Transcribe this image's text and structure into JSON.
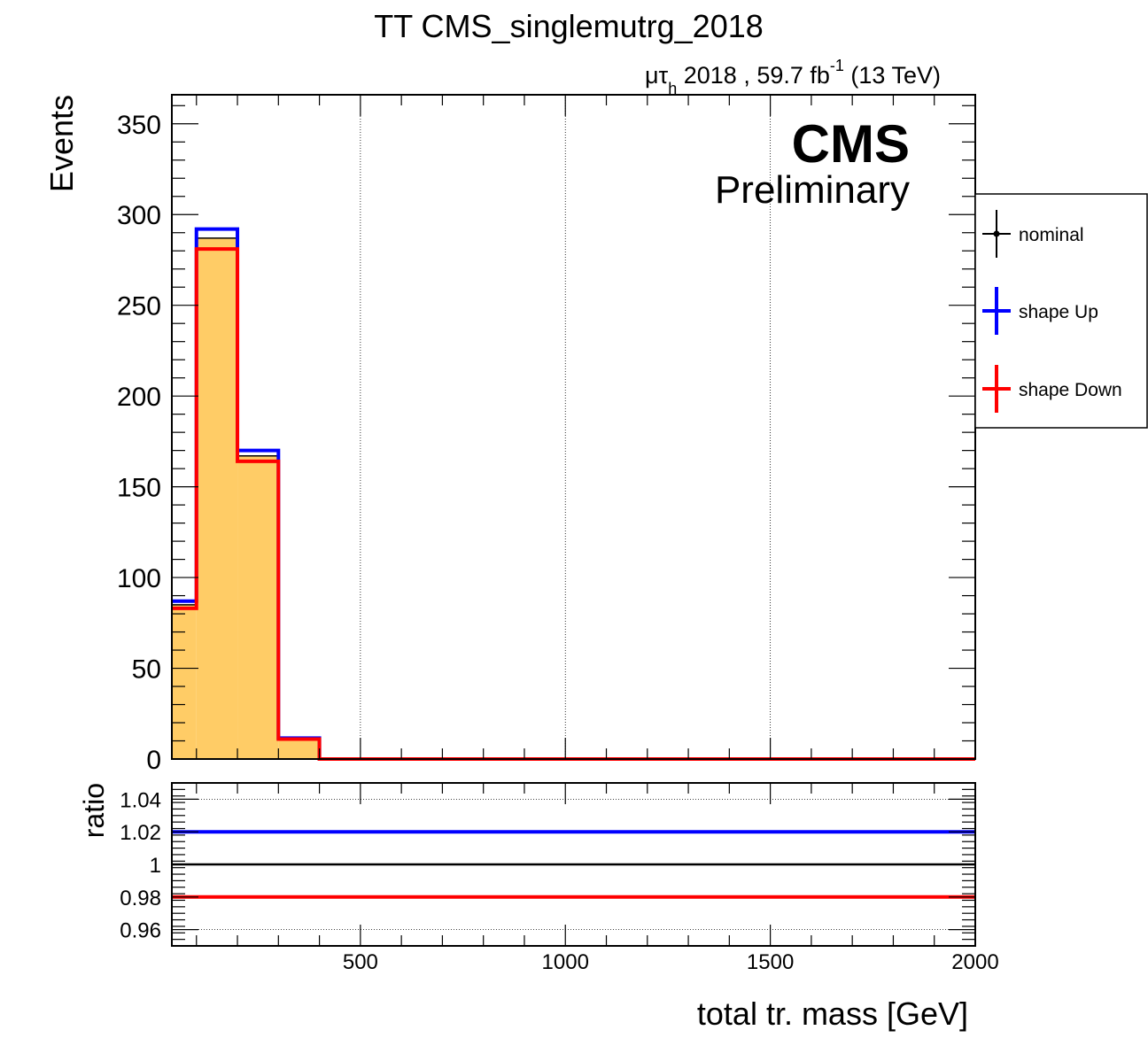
{
  "chart_data": [
    {
      "type": "step",
      "title": "TT CMS_singlemutrg_2018",
      "lumi_label": {
        "channel_main": "μτ",
        "channel_sub": "h",
        "text": " 2018 , 59.7 fb",
        "exponent": "-1",
        "suffix": " (13 TeV)"
      },
      "cms_label": "CMS",
      "cms_sublabel": "Preliminary",
      "ylabel": "Events",
      "xlabel": "total tr. mass [GeV]",
      "xlim": [
        40,
        2000
      ],
      "ylim": [
        0,
        366
      ],
      "x_ticks": [
        500,
        1000,
        1500,
        2000
      ],
      "y_ticks": [
        0,
        50,
        100,
        150,
        200,
        250,
        300,
        350
      ],
      "y_minor_step": 10,
      "x_minor_step": 100,
      "grid_x": true,
      "legend_position": "right",
      "legend": [
        {
          "label": "nominal",
          "color": "#000000"
        },
        {
          "label": "shape Up",
          "color": "#0000ff"
        },
        {
          "label": "shape Down",
          "color": "#ff0000"
        }
      ],
      "bin_edges": [
        40,
        100,
        200,
        300,
        400,
        2000
      ],
      "series": [
        {
          "name": "nominal",
          "color": "#000000",
          "fill": "#ffcc66",
          "values": [
            85,
            287,
            167,
            11,
            0
          ]
        },
        {
          "name": "shape Up",
          "color": "#0000ff",
          "values": [
            87,
            292,
            170,
            11.5,
            0
          ]
        },
        {
          "name": "shape Down",
          "color": "#ff0000",
          "values": [
            83,
            281,
            164,
            11,
            0
          ]
        }
      ]
    },
    {
      "type": "line",
      "ylabel": "ratio",
      "xlabel": "total tr. mass [GeV]",
      "xlim": [
        40,
        2000
      ],
      "ylim": [
        0.95,
        1.05
      ],
      "y_ticks": [
        0.96,
        0.98,
        1,
        1.02,
        1.04
      ],
      "y_tick_labels": [
        "0.96",
        "0.98",
        "1",
        "1.02",
        "1.04"
      ],
      "x_ticks": [
        500,
        1000,
        1500,
        2000
      ],
      "grid_y": true,
      "series": [
        {
          "name": "shape Up",
          "color": "#0000ff",
          "value": 1.02
        },
        {
          "name": "nominal",
          "color": "#000000",
          "value": 1.0
        },
        {
          "name": "shape Down",
          "color": "#ff0000",
          "value": 0.98
        }
      ]
    }
  ]
}
